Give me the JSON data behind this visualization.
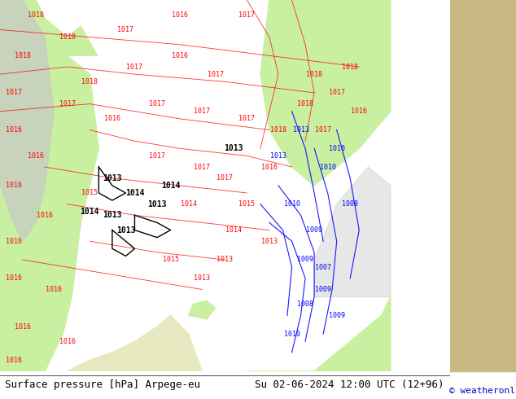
{
  "title_left": "Surface pressure [hPa] Arpege-eu",
  "title_right": "Su 02-06-2024 12:00 UTC (12+96)",
  "credit": "© weatheronline.co.uk",
  "background_map_color": "#f0f0f0",
  "land_green_color": "#c8f0a0",
  "land_grey_color": "#d0d0d0",
  "sea_color": "#ffffff",
  "right_panel_color": "#c8b882",
  "contour_color_red": "#ff0000",
  "contour_color_black": "#000000",
  "contour_color_blue": "#0000ff",
  "label_fontsize": 7,
  "footer_fontsize": 9,
  "credit_fontsize": 8,
  "figsize": [
    6.34,
    4.9
  ],
  "dpi": 100
}
